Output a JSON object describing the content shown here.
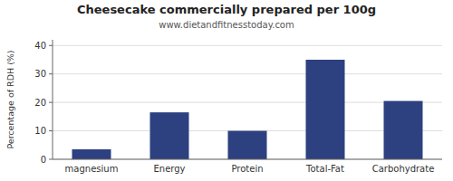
{
  "chart_data": {
    "type": "bar",
    "title": "Cheesecake commercially prepared per 100g",
    "subtitle": "www.dietandfitnesstoday.com",
    "ylabel": "Percentage of RDH (%)",
    "categories": [
      "magnesium",
      "Energy",
      "Protein",
      "Total-Fat",
      "Carbohydrate"
    ],
    "values": [
      3.5,
      16.5,
      10.0,
      35.0,
      20.5
    ],
    "color": "#2d4080",
    "ylim": [
      0,
      42
    ],
    "yticks": [
      0,
      10,
      20,
      30,
      40
    ],
    "grid": true
  }
}
